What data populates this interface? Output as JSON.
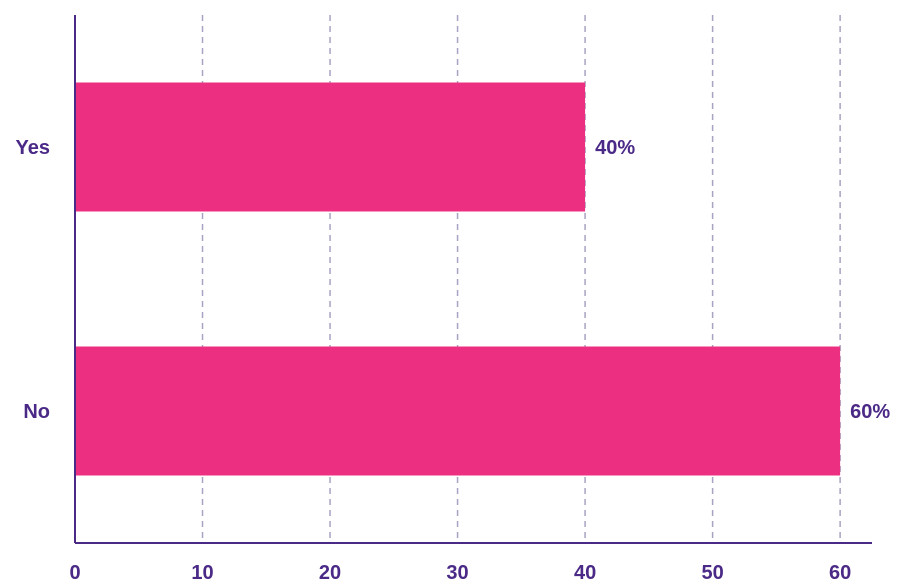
{
  "chart_data": {
    "type": "bar",
    "orientation": "horizontal",
    "categories": [
      "Yes",
      "No"
    ],
    "values": [
      40,
      60
    ],
    "data_labels": [
      "40%",
      "60%"
    ],
    "title": "",
    "xlabel": "",
    "ylabel": "",
    "xlim": [
      0,
      62.5
    ],
    "x_ticks": [
      0,
      10,
      20,
      30,
      40,
      50,
      60
    ],
    "x_tick_labels": [
      "0",
      "10",
      "20",
      "30",
      "40",
      "50",
      "60"
    ],
    "grid": "vertical dashed",
    "legend": "none"
  },
  "colors": {
    "bar": "#ec2f80",
    "text": "#4b2a87",
    "axis": "#4b2a87",
    "grid": "#a9a2c2"
  }
}
